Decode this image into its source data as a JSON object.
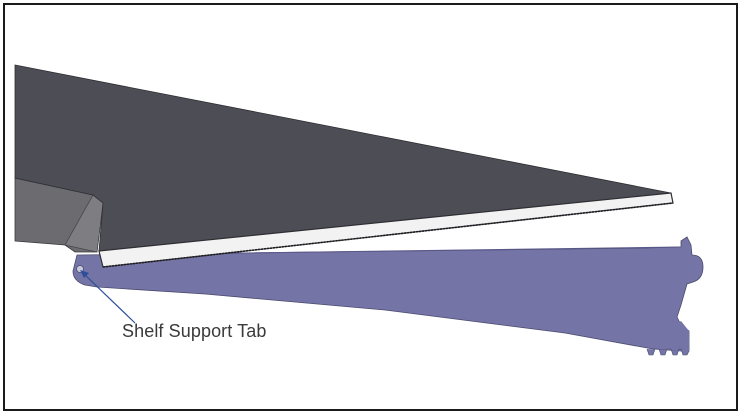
{
  "figure": {
    "callout_label": "Shelf Support Tab",
    "colors": {
      "shelf_top": "#4d4d55",
      "shelf_side": "#6b6b70",
      "shelf_edge": "#f2f2f2",
      "bracket": "#7574a6",
      "bracket_dark": "#5a5989",
      "callout_line": "#2b4f9a",
      "frame": "#1a1a1a"
    },
    "icons": [
      "shelf-panel",
      "shelf-bracket",
      "shelf-support-tab"
    ]
  }
}
